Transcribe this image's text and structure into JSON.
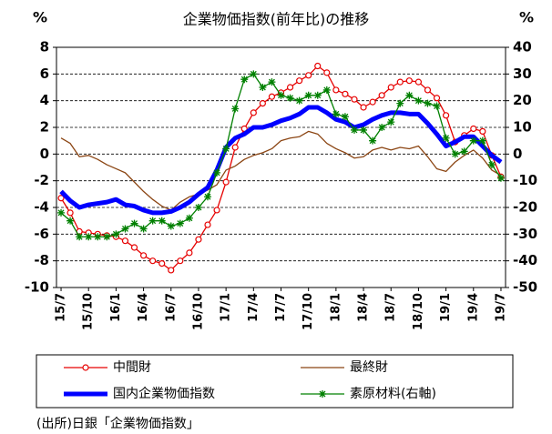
{
  "chart_data": {
    "type": "line",
    "title": "企業物価指数(前年比)の推移",
    "y_unit": "%",
    "y2_unit": "%",
    "source": "(出所)日銀「企業物価指数」",
    "categories": [
      "15/7",
      null,
      null,
      "15/10",
      null,
      null,
      "16/1",
      null,
      null,
      "16/4",
      null,
      null,
      "16/7",
      null,
      null,
      "16/10",
      null,
      null,
      "17/1",
      null,
      null,
      "17/4",
      null,
      null,
      "17/7",
      null,
      null,
      "17/10",
      null,
      null,
      "18/1",
      null,
      null,
      "18/4",
      null,
      null,
      "18/7",
      null,
      null,
      "18/10",
      null,
      null,
      "19/1",
      null,
      null,
      "19/4",
      null,
      null,
      "19/7"
    ],
    "ylim": [
      -10,
      8
    ],
    "yticks": [
      -10,
      -8,
      -6,
      -4,
      -2,
      0,
      2,
      4,
      6,
      8
    ],
    "y2lim": [
      -50,
      40
    ],
    "y2ticks": [
      -50,
      -40,
      -30,
      -20,
      -10,
      0,
      10,
      20,
      30,
      40
    ],
    "grid": true,
    "series": [
      {
        "name": "中間財",
        "color": "#e60000",
        "marker": "circle",
        "line_width": 1.3,
        "values": [
          -3.3,
          -4.4,
          -5.8,
          -5.9,
          -6.0,
          -6.1,
          -6.2,
          -6.5,
          -7.0,
          -7.6,
          -8.0,
          -8.2,
          -8.7,
          -8.0,
          -7.4,
          -6.4,
          -5.3,
          -4.2,
          -2.1,
          0.5,
          1.9,
          3.1,
          3.8,
          4.3,
          4.6,
          5.0,
          5.5,
          5.9,
          6.6,
          6.1,
          4.8,
          4.5,
          4.1,
          3.5,
          3.9,
          4.4,
          5.0,
          5.4,
          5.5,
          5.4,
          4.8,
          4.2,
          2.9,
          0.9,
          1.4,
          1.9,
          1.7,
          -0.1,
          -1.7
        ]
      },
      {
        "name": "最終財",
        "color": "#8b4513",
        "line_width": 1.3,
        "values": [
          1.2,
          0.8,
          -0.2,
          -0.1,
          -0.4,
          -0.8,
          -1.1,
          -1.4,
          -2.1,
          -2.8,
          -3.4,
          -3.9,
          -4.2,
          -3.6,
          -3.2,
          -3.0,
          -2.7,
          -2.3,
          -1.2,
          -0.9,
          -0.4,
          -0.1,
          0.1,
          0.4,
          1.0,
          1.2,
          1.3,
          1.7,
          1.5,
          0.8,
          0.4,
          0.1,
          -0.3,
          -0.2,
          0.3,
          0.5,
          0.3,
          0.5,
          0.4,
          0.6,
          -0.2,
          -1.1,
          -1.3,
          -0.6,
          -0.1,
          0.3,
          -0.3,
          -1.2,
          -1.6
        ]
      },
      {
        "name": "国内企業物価指数",
        "color": "#0000ff",
        "line_width": 5,
        "values": [
          -2.8,
          -3.5,
          -4.0,
          -3.8,
          -3.7,
          -3.6,
          -3.4,
          -3.8,
          -3.9,
          -4.2,
          -4.4,
          -4.4,
          -4.3,
          -4.0,
          -3.6,
          -3.0,
          -2.5,
          -1.2,
          0.5,
          1.2,
          1.5,
          2.0,
          2.0,
          2.2,
          2.5,
          2.7,
          3.0,
          3.5,
          3.5,
          3.1,
          2.6,
          2.4,
          2.0,
          2.2,
          2.6,
          2.9,
          3.1,
          3.1,
          3.0,
          3.0,
          2.3,
          1.5,
          0.6,
          0.9,
          1.3,
          1.3,
          0.6,
          -0.1,
          -0.6
        ]
      },
      {
        "name": "素原材料(右軸)",
        "color": "#008000",
        "marker": "star",
        "line_width": 1.3,
        "axis": "y2",
        "values": [
          -22,
          -25,
          -31,
          -31,
          -31,
          -31,
          -30,
          -28,
          -26,
          -28,
          -25,
          -25,
          -27,
          -26,
          -24,
          -20,
          -16,
          -7,
          2,
          17,
          28,
          30,
          25,
          27,
          22,
          21,
          20,
          22,
          22,
          24,
          15,
          14,
          9,
          9,
          5,
          10,
          12,
          19,
          22,
          20,
          19,
          18,
          6,
          0,
          1,
          5,
          5,
          -4,
          -9
        ]
      }
    ]
  }
}
